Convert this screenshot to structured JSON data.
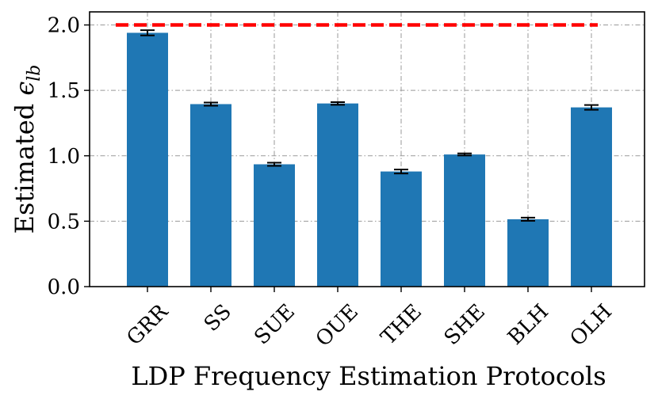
{
  "chart_data": {
    "type": "bar",
    "title": "",
    "xlabel": "LDP Frequency Estimation Protocols",
    "ylabel_prefix": "Estimated ",
    "ylabel_symbol": "ϵ",
    "ylabel_subscript": "lb",
    "categories": [
      "GRR",
      "SS",
      "SUE",
      "OUE",
      "THE",
      "SHE",
      "BLH",
      "OLH"
    ],
    "values": [
      1.94,
      1.395,
      0.935,
      1.4,
      0.88,
      1.01,
      0.515,
      1.37
    ],
    "errors": [
      0.02,
      0.012,
      0.012,
      0.01,
      0.015,
      0.008,
      0.012,
      0.018
    ],
    "reference_line": {
      "value": 2.0,
      "color": "#ff0000",
      "style": "dashed"
    },
    "ylim": [
      0,
      2.1
    ],
    "yticks": [
      "0.0",
      "0.5",
      "1.0",
      "1.5",
      "2.0"
    ],
    "grid": true,
    "bar_color": "#1f77b4"
  }
}
